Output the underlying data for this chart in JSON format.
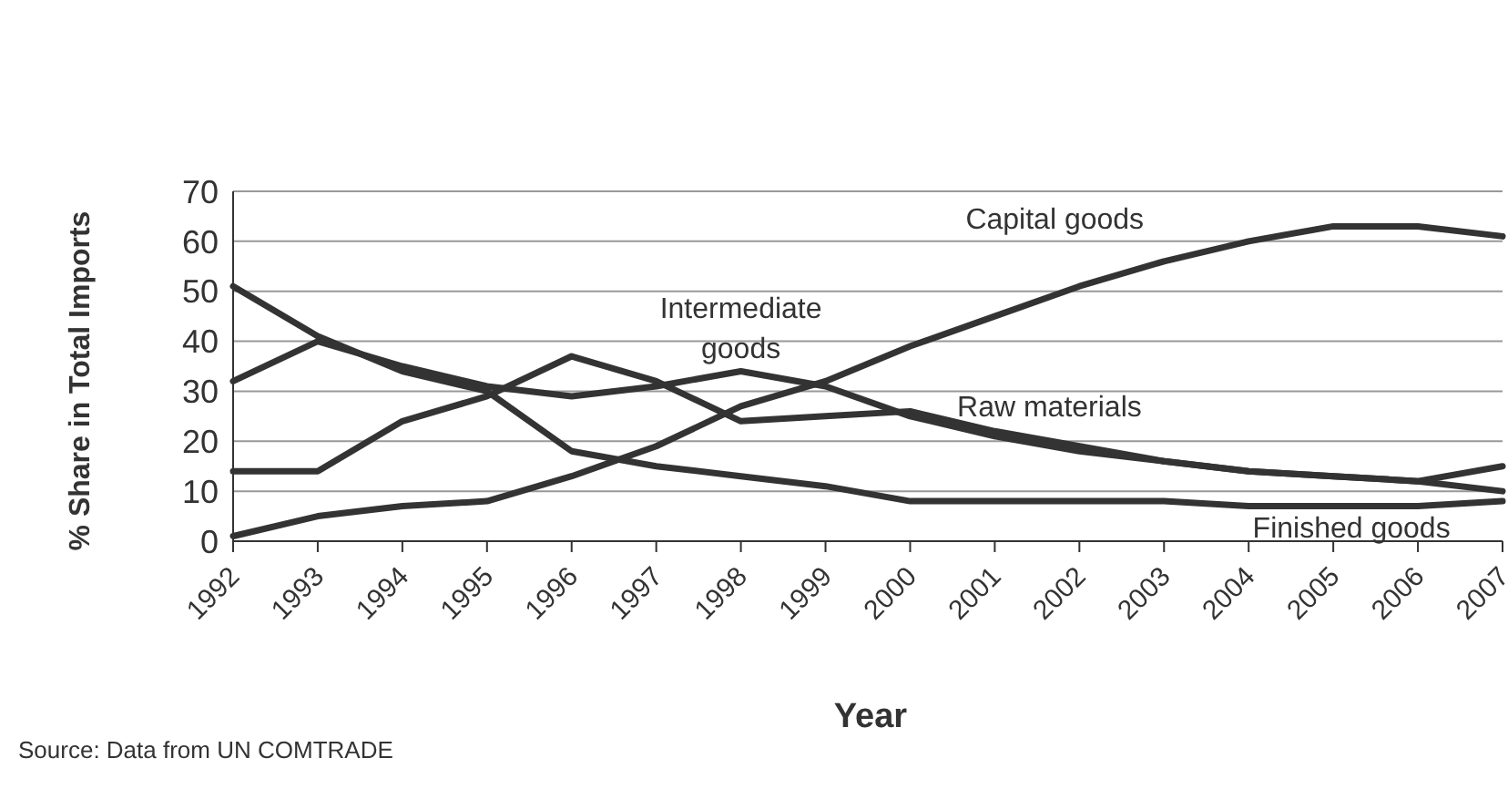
{
  "chart_data": {
    "type": "line",
    "xlabel": "Year",
    "ylabel": "% Share in Total Imports",
    "categories": [
      "1992",
      "1993",
      "1994",
      "1995",
      "1996",
      "1997",
      "1998",
      "1999",
      "2000",
      "2001",
      "2002",
      "2003",
      "2004",
      "2005",
      "2006",
      "2007"
    ],
    "series": [
      {
        "name": "Capital goods",
        "color": "#333333",
        "values": [
          1,
          5,
          7,
          8,
          13,
          19,
          27,
          32,
          39,
          45,
          51,
          56,
          60,
          63,
          63,
          61
        ]
      },
      {
        "name": "Intermediate goods",
        "color": "#333333",
        "values": [
          32,
          40,
          35,
          31,
          29,
          31,
          34,
          31,
          25,
          21,
          18,
          16,
          14,
          13,
          12,
          10
        ]
      },
      {
        "name": "Raw materials",
        "color": "#333333",
        "values": [
          14,
          14,
          24,
          29,
          37,
          32,
          24,
          25,
          26,
          22,
          19,
          16,
          14,
          13,
          12,
          15
        ]
      },
      {
        "name": "Finished goods",
        "color": "#333333",
        "values": [
          51,
          41,
          34,
          30,
          18,
          15,
          13,
          11,
          8,
          8,
          8,
          8,
          7,
          7,
          7,
          8
        ]
      }
    ],
    "ylim": [
      0,
      70
    ],
    "yticks": [
      0,
      10,
      20,
      30,
      40,
      50,
      60,
      70
    ],
    "grid": "y",
    "legend": false,
    "marker": "none",
    "line_style": "solid",
    "annotations": [
      "Source: Data from UN COMTRADE"
    ]
  }
}
